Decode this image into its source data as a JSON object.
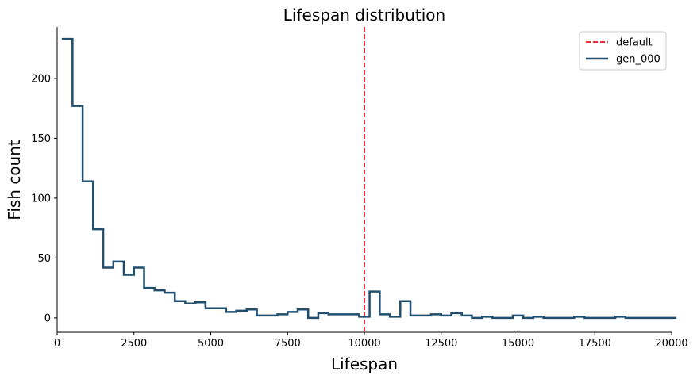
{
  "chart_data": {
    "type": "line",
    "title": "Lifespan distribution",
    "xlabel": "Lifespan",
    "ylabel": "Fish count",
    "xlim": [
      0,
      20000
    ],
    "ylim": [
      -12,
      243
    ],
    "xticks": [
      0,
      2500,
      5000,
      7500,
      10000,
      12500,
      15000,
      17500,
      20000
    ],
    "yticks": [
      0,
      50,
      100,
      150,
      200
    ],
    "grid": false,
    "legend_position": "top-right",
    "reference_lines": [
      {
        "name": "default",
        "axis": "x",
        "value": 10000,
        "style": "dashed",
        "color": "#e8121c"
      }
    ],
    "series": [
      {
        "name": "gen_000",
        "style": "step",
        "color": "#1f4e6e",
        "x": [
          150,
          500,
          830,
          1170,
          1500,
          1830,
          2170,
          2500,
          2830,
          3170,
          3500,
          3830,
          4170,
          4500,
          4830,
          5170,
          5500,
          5830,
          6170,
          6500,
          6830,
          7170,
          7500,
          7830,
          8170,
          8500,
          8830,
          9170,
          9500,
          9830,
          10170,
          10500,
          10830,
          11170,
          11500,
          11830,
          12170,
          12500,
          12830,
          13170,
          13500,
          13830,
          14170,
          14500,
          14830,
          15170,
          15500,
          15830,
          16170,
          16500,
          16830,
          17170,
          17500,
          17830,
          18170,
          18500,
          18830,
          19170,
          19500,
          19830
        ],
        "y": [
          233,
          177,
          114,
          74,
          42,
          47,
          36,
          42,
          25,
          23,
          21,
          14,
          12,
          13,
          8,
          8,
          5,
          6,
          7,
          2,
          2,
          3,
          5,
          7,
          0,
          4,
          3,
          3,
          3,
          1,
          22,
          3,
          1,
          14,
          2,
          2,
          3,
          2,
          4,
          2,
          0,
          1,
          0,
          0,
          2,
          0,
          1,
          0,
          0,
          0,
          1,
          0,
          0,
          0,
          1,
          0,
          0,
          0,
          0,
          0
        ]
      }
    ]
  }
}
